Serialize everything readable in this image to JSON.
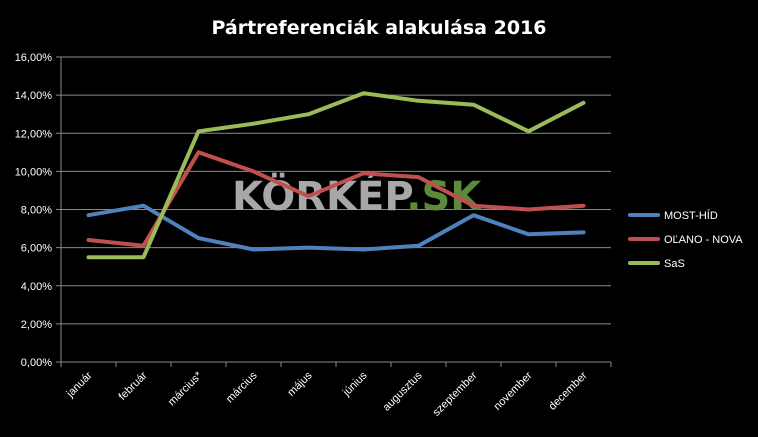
{
  "chart_data": {
    "type": "line",
    "title": "Pártreferenciák alakulása 2016",
    "watermark": {
      "part1": "KÖRKÉP",
      "part2": ".SK"
    },
    "categories": [
      "január",
      "február",
      "március*",
      "március",
      "május",
      "június",
      "augusztus",
      "szeptember",
      "november",
      "december"
    ],
    "ylim": [
      0,
      16
    ],
    "yticks": [
      0,
      2,
      4,
      6,
      8,
      10,
      12,
      14,
      16
    ],
    "ytick_labels": [
      "0,00%",
      "2,00%",
      "4,00%",
      "6,00%",
      "8,00%",
      "10,00%",
      "12,00%",
      "14,00%",
      "16,00%"
    ],
    "grid": true,
    "legend_position": "right",
    "series": [
      {
        "name": "MOST-HÍD",
        "color": "#4f81bd",
        "values": [
          7.7,
          8.2,
          6.5,
          5.9,
          6.0,
          5.9,
          6.1,
          7.7,
          6.7,
          6.8
        ]
      },
      {
        "name": "OĽANO - NOVA",
        "color": "#c0504d",
        "values": [
          6.4,
          6.1,
          11.0,
          10.0,
          8.7,
          9.9,
          9.7,
          8.2,
          8.0,
          8.2
        ]
      },
      {
        "name": "SaS",
        "color": "#9bbb59",
        "values": [
          5.5,
          5.5,
          12.1,
          12.5,
          13.0,
          14.1,
          13.7,
          13.5,
          12.1,
          13.6
        ]
      }
    ]
  }
}
